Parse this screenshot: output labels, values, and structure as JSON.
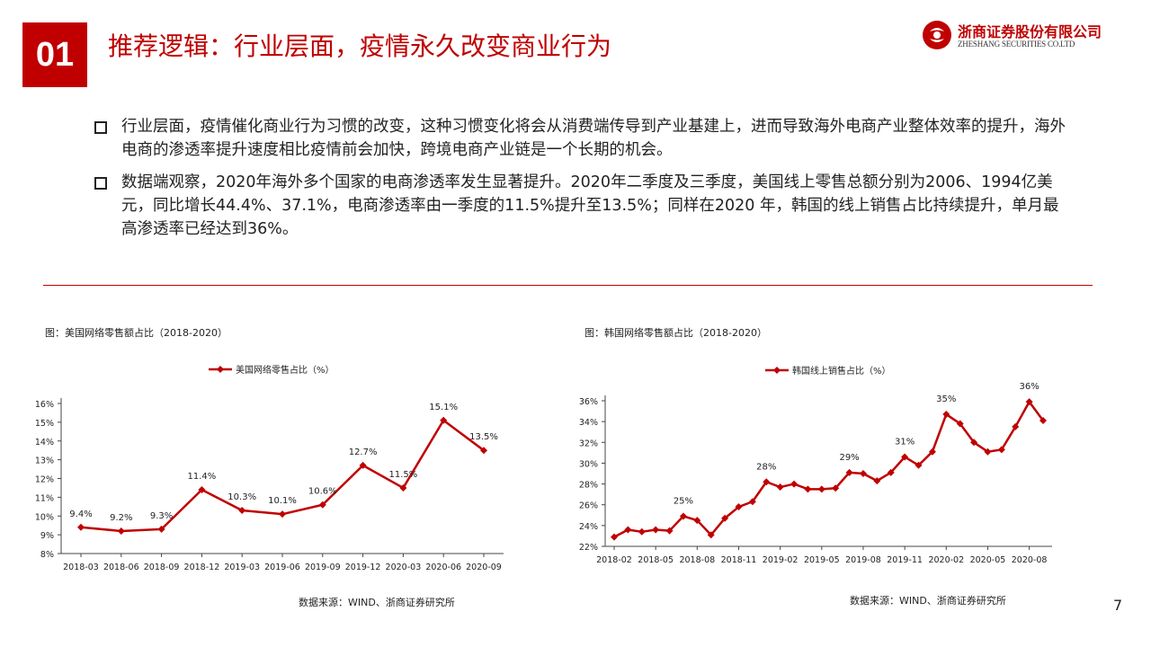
{
  "header": {
    "section_number": "01",
    "title": "推荐逻辑：行业层面，疫情永久改变商业行为",
    "logo_cn": "浙商证券股份有限公司",
    "logo_en": "ZHESHANG SECURITIES CO.LTD"
  },
  "bullets": [
    {
      "text": "行业层面，疫情催化商业行为习惯的改变，这种习惯变化将会从消费端传导到产业基建上，进而导致海外电商产业整体效率的提升，海外电商的渗透率提升速度相比疫情前会加快，跨境电商产业链是一个长期的机会。"
    },
    {
      "text": "数据端观察，2020年海外多个国家的电商渗透率发生显著提升。2020年二季度及三季度，美国线上零售总额分别为2006、1994亿美元，同比增长44.4%、37.1%，电商渗透率由一季度的11.5%提升至13.5%；同样在2020  年，韩国的线上销售占比持续提升，单月最高渗透率已经达到36%。"
    }
  ],
  "figures": {
    "us": {
      "caption": "图：美国网络零售额占比（2018-2020）",
      "source": "数据来源：WIND、浙商证券研究所"
    },
    "kr": {
      "caption": "图：韩国网络零售额占比（2018-2020）",
      "source": "数据来源：WIND、浙商证券研究所"
    }
  },
  "page_number": "7",
  "colors": {
    "accent": "#c00000",
    "series": "#c00000"
  },
  "chart_data": [
    {
      "type": "line",
      "title": "",
      "series": [
        {
          "name": "美国网络零售占比（%）",
          "values": [
            9.4,
            9.2,
            9.3,
            11.4,
            10.3,
            10.1,
            10.6,
            12.7,
            11.5,
            15.1,
            13.5
          ]
        }
      ],
      "x": [
        "2018-03",
        "2018-06",
        "2018-09",
        "2018-12",
        "2019-03",
        "2019-06",
        "2019-09",
        "2019-12",
        "2020-03",
        "2020-06",
        "2020-09"
      ],
      "data_labels": [
        "9.4%",
        "9.2%",
        "9.3%",
        "11.4%",
        "10.3%",
        "10.1%",
        "10.6%",
        "12.7%",
        "11.5%",
        "15.1%",
        "13.5%"
      ],
      "yticks": [
        "8%",
        "9%",
        "10%",
        "11%",
        "12%",
        "13%",
        "14%",
        "15%",
        "16%"
      ],
      "ylim": [
        8,
        16
      ],
      "legend": "top-center",
      "grid": false
    },
    {
      "type": "line",
      "title": "",
      "series": [
        {
          "name": "韩国线上销售占比（%）",
          "values": [
            22.9,
            23.6,
            23.4,
            23.6,
            23.5,
            24.9,
            24.5,
            23.1,
            24.7,
            25.8,
            26.3,
            28.2,
            27.7,
            28.0,
            27.5,
            27.5,
            27.6,
            29.1,
            29.0,
            28.3,
            29.1,
            30.6,
            29.8,
            31.1,
            34.7,
            33.8,
            32.0,
            31.1,
            31.3,
            33.5,
            35.9,
            34.1
          ]
        }
      ],
      "x": [
        "2018-02",
        "2018-03",
        "2018-04",
        "2018-05",
        "2018-06",
        "2018-07",
        "2018-08",
        "2018-09",
        "2018-10",
        "2018-11",
        "2018-12",
        "2019-01",
        "2019-02",
        "2019-03",
        "2019-04",
        "2019-05",
        "2019-06",
        "2019-07",
        "2019-08",
        "2019-09",
        "2019-10",
        "2019-11",
        "2019-12",
        "2020-01",
        "2020-02",
        "2020-03",
        "2020-04",
        "2020-05",
        "2020-06",
        "2020-07",
        "2020-08",
        "2020-09"
      ],
      "xticks": [
        "2018-02",
        "2018-05",
        "2018-08",
        "2018-11",
        "2019-02",
        "2019-05",
        "2019-08",
        "2019-11",
        "2020-02",
        "2020-05",
        "2020-08"
      ],
      "annotations": [
        {
          "x": "2018-07",
          "text": "25%"
        },
        {
          "x": "2019-01",
          "text": "28%"
        },
        {
          "x": "2019-07",
          "text": "29%"
        },
        {
          "x": "2019-11",
          "text": "31%"
        },
        {
          "x": "2020-02",
          "text": "35%"
        },
        {
          "x": "2020-08",
          "text": "36%"
        }
      ],
      "yticks": [
        "22%",
        "24%",
        "26%",
        "28%",
        "30%",
        "32%",
        "34%",
        "36%"
      ],
      "ylim": [
        22,
        36
      ],
      "legend": "top-center",
      "grid": false
    }
  ]
}
